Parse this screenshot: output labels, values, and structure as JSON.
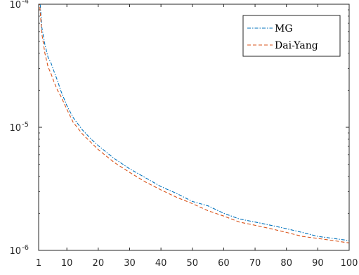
{
  "chart_data": {
    "type": "line",
    "title": "",
    "xlabel": "",
    "ylabel": "",
    "xlim": [
      1,
      100
    ],
    "ylim": [
      1e-06,
      0.0001
    ],
    "yscale": "log",
    "grid": false,
    "legend_position": "top-right",
    "x_ticks": [
      1,
      10,
      20,
      30,
      40,
      50,
      60,
      70,
      80,
      90,
      100
    ],
    "x_tick_labels": [
      "1",
      "10",
      "20",
      "30",
      "40",
      "50",
      "60",
      "70",
      "80",
      "90",
      "100"
    ],
    "y_ticks": [
      1e-06,
      1e-05,
      0.0001
    ],
    "y_tick_labels": [
      {
        "base": "10",
        "exp": "-6"
      },
      {
        "base": "10",
        "exp": "-5"
      },
      {
        "base": "10",
        "exp": "-4"
      }
    ],
    "x": [
      1,
      2,
      3,
      4,
      5,
      6,
      7,
      8,
      10,
      12,
      15,
      18,
      20,
      25,
      30,
      35,
      40,
      45,
      50,
      55,
      60,
      65,
      70,
      75,
      80,
      85,
      90,
      95,
      100
    ],
    "series": [
      {
        "name": "MG",
        "color": "#0072BD",
        "dash": "dashdot",
        "values": [
          0.00015,
          6.5e-05,
          4.7e-05,
          3.7e-05,
          3.3e-05,
          2.8e-05,
          2.4e-05,
          2e-05,
          1.5e-05,
          1.2e-05,
          9.5e-06,
          7.9e-06,
          7.1e-06,
          5.6e-06,
          4.6e-06,
          3.9e-06,
          3.3e-06,
          2.9e-06,
          2.5e-06,
          2.3e-06,
          2e-06,
          1.8e-06,
          1.7e-06,
          1.6e-06,
          1.5e-06,
          1.4e-06,
          1.3e-06,
          1.25e-06,
          1.2e-06
        ]
      },
      {
        "name": "Dai-Yang",
        "color": "#D95319",
        "dash": "dashed",
        "values": [
          0.00013,
          5.8e-05,
          4e-05,
          3.1e-05,
          2.7e-05,
          2.3e-05,
          2e-05,
          1.8e-05,
          1.4e-05,
          1.1e-05,
          8.8e-06,
          7.4e-06,
          6.6e-06,
          5.2e-06,
          4.3e-06,
          3.6e-06,
          3.1e-06,
          2.7e-06,
          2.4e-06,
          2.1e-06,
          1.9e-06,
          1.7e-06,
          1.6e-06,
          1.5e-06,
          1.4e-06,
          1.3e-06,
          1.25e-06,
          1.2e-06,
          1.15e-06
        ]
      }
    ]
  }
}
